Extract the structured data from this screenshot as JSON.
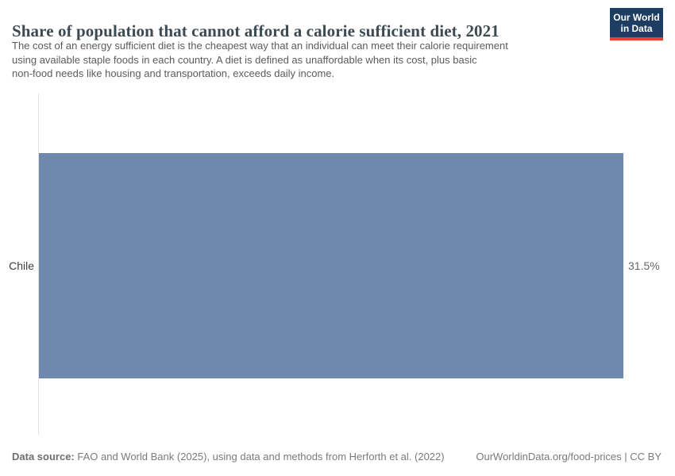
{
  "header": {
    "title": "Share of population that cannot afford a calorie sufficient diet, 2021",
    "subtitle_lines": [
      "The cost of an energy sufficient diet is the cheapest way that an individual can meet their calorie requirement",
      "using available staple foods in each country. A diet is defined as unaffordable when its cost, plus basic",
      "non-food needs like housing and transportation, exceeds daily income."
    ],
    "logo": {
      "line1": "Our World",
      "line2": "in Data"
    }
  },
  "chart_data": {
    "type": "bar",
    "orientation": "horizontal",
    "title": "Share of population that cannot afford a calorie sufficient diet, 2021",
    "categories": [
      "Chile"
    ],
    "values": [
      31.5
    ],
    "value_labels": [
      "31.5%"
    ],
    "xlabel": "",
    "ylabel": "",
    "xlim": [
      0,
      31.5
    ],
    "grid": false,
    "legend": "none",
    "bar_color": "#6e88ae"
  },
  "footer": {
    "datasource_label": "Data source:",
    "datasource_text": "FAO and World Bank (2025), using data and methods from Herforth et al. (2022)",
    "attribution": "OurWorldinData.org/food-prices | CC BY"
  },
  "colors": {
    "bar": "#6e88ae",
    "logo_background": "#1d3d63",
    "logo_stripe": "#e0442b",
    "title_text": "#3d4a52",
    "subtitle_text": "#5b5b5b",
    "footer_text": "#7a7a7a",
    "axis_line": "#e2e2e2"
  }
}
